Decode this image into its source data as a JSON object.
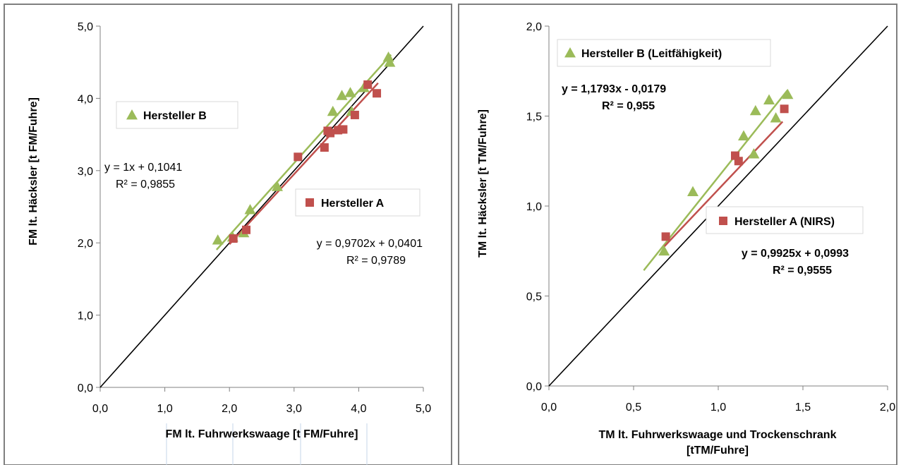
{
  "colors": {
    "series_a": "#c0504d",
    "series_b": "#9bbb59",
    "identity": "#000000",
    "frame": "#7f7f7f",
    "gridline": "#c6d5e8"
  },
  "chart_data": [
    {
      "type": "scatter",
      "xlabel": "FM lt. Fuhrwerkswaage [t FM/Fuhre]",
      "ylabel": "FM  lt. Häcksler [t FM/Fuhre]",
      "xlim": [
        0,
        5
      ],
      "ylim": [
        0,
        5
      ],
      "xticks": [
        "0,0",
        "1,0",
        "2,0",
        "3,0",
        "4,0",
        "5,0"
      ],
      "yticks": [
        "0,0",
        "1,0",
        "2,0",
        "3,0",
        "4,0",
        "5,0"
      ],
      "series": [
        {
          "name": "Hersteller B",
          "marker": "triangle",
          "color": "#9bbb59",
          "points": [
            [
              1.82,
              2.04
            ],
            [
              2.05,
              2.08
            ],
            [
              2.22,
              2.14
            ],
            [
              2.32,
              2.46
            ],
            [
              2.74,
              2.78
            ],
            [
              3.6,
              3.82
            ],
            [
              3.74,
              4.04
            ],
            [
              3.87,
              4.08
            ],
            [
              3.89,
              3.82
            ],
            [
              4.08,
              4.15
            ],
            [
              4.46,
              4.57
            ],
            [
              4.48,
              4.5
            ]
          ],
          "trendline": {
            "slope": 1.0,
            "intercept": 0.1041,
            "x_range": [
              1.8,
              4.5
            ],
            "equation": "y = 1x + 0,1041",
            "r2": "R² = 0,9855"
          }
        },
        {
          "name": "Hersteller A",
          "marker": "square",
          "color": "#c0504d",
          "points": [
            [
              2.06,
              2.06
            ],
            [
              2.26,
              2.18
            ],
            [
              3.06,
              3.19
            ],
            [
              3.47,
              3.32
            ],
            [
              3.52,
              3.55
            ],
            [
              3.56,
              3.52
            ],
            [
              3.68,
              3.56
            ],
            [
              3.76,
              3.57
            ],
            [
              3.94,
              3.77
            ],
            [
              4.14,
              4.19
            ],
            [
              4.28,
              4.07
            ]
          ],
          "trendline": {
            "slope": 0.9702,
            "intercept": 0.0401,
            "x_range": [
              2.0,
              4.3
            ],
            "equation": "y = 0,9702x + 0,0401",
            "r2": "R² = 0,9789"
          }
        }
      ],
      "identity_line": true,
      "grid": false,
      "legend_placement": "inside"
    },
    {
      "type": "scatter",
      "xlabel": "TM lt. Fuhrwerkswaage und Trockenschrank",
      "xlabel2": "[tTM/Fuhre]",
      "ylabel": "TM lt. Häcksler  [t TM/Fuhre]",
      "xlim": [
        0,
        2
      ],
      "ylim": [
        0,
        2
      ],
      "xticks": [
        "0,0",
        "0,5",
        "1,0",
        "1,5",
        "2,0"
      ],
      "yticks": [
        "0,0",
        "0,5",
        "1,0",
        "1,5",
        "2,0"
      ],
      "series": [
        {
          "name": "Hersteller B (Leitfähigkeit)",
          "marker": "triangle",
          "color": "#9bbb59",
          "points": [
            [
              0.68,
              0.75
            ],
            [
              0.85,
              1.08
            ],
            [
              1.15,
              1.39
            ],
            [
              1.21,
              1.29
            ],
            [
              1.22,
              1.53
            ],
            [
              1.3,
              1.59
            ],
            [
              1.34,
              1.49
            ],
            [
              1.41,
              1.62
            ]
          ],
          "trendline": {
            "slope": 1.1793,
            "intercept": -0.0179,
            "x_range": [
              0.56,
              1.41
            ],
            "equation": "y = 1,1793x - 0,0179",
            "r2": "R² = 0,955"
          }
        },
        {
          "name": "Hersteller A (NIRS)",
          "marker": "square",
          "color": "#c0504d",
          "points": [
            [
              0.69,
              0.83
            ],
            [
              1.1,
              1.28
            ],
            [
              1.12,
              1.25
            ],
            [
              1.39,
              1.54
            ]
          ],
          "trendline": {
            "slope": 0.9925,
            "intercept": 0.0993,
            "x_range": [
              0.68,
              1.38
            ],
            "equation": "y = 0,9925x + 0,0993",
            "r2": "R² = 0,9555"
          }
        }
      ],
      "identity_line": true,
      "grid": false,
      "legend_placement": "inside"
    }
  ]
}
